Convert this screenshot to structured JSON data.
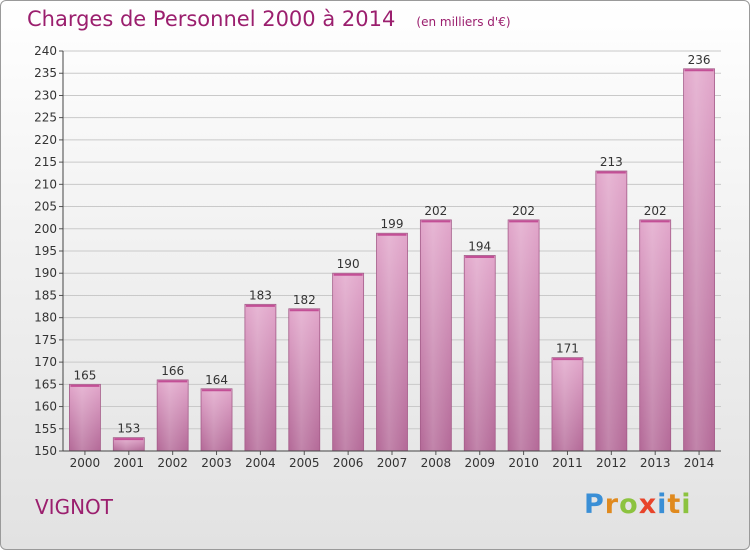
{
  "header": {
    "title": "Charges de Personnel 2000 à 2014",
    "subtitle": "(en milliers d'€)"
  },
  "footer": {
    "commune": "VIGNOT",
    "logo_text": "Proxiti",
    "logo_letters": [
      {
        "ch": "P",
        "color": "#3a8fd6"
      },
      {
        "ch": "r",
        "color": "#e08a1e"
      },
      {
        "ch": "o",
        "color": "#8cc33f"
      },
      {
        "ch": "x",
        "color": "#e8442a"
      },
      {
        "ch": "i",
        "color": "#3a8fd6"
      },
      {
        "ch": "t",
        "color": "#e08a1e"
      },
      {
        "ch": "i",
        "color": "#8cc33f"
      }
    ]
  },
  "chart_data": {
    "type": "bar",
    "title": "Charges de Personnel 2000 à 2014",
    "subtitle": "(en milliers d'€)",
    "categories": [
      "2000",
      "2001",
      "2002",
      "2003",
      "2004",
      "2005",
      "2006",
      "2007",
      "2008",
      "2009",
      "2010",
      "2011",
      "2012",
      "2013",
      "2014"
    ],
    "values": [
      165,
      153,
      166,
      164,
      183,
      182,
      190,
      199,
      202,
      194,
      202,
      171,
      213,
      202,
      236
    ],
    "ylim": [
      150,
      240
    ],
    "yticks": [
      150,
      155,
      160,
      165,
      170,
      175,
      180,
      185,
      190,
      195,
      200,
      205,
      210,
      215,
      220,
      225,
      230,
      235,
      240
    ],
    "grid": true,
    "bar_color": "#d890bd",
    "bar_color_dark": "#b56a98",
    "accent": "#9b1f6e"
  }
}
